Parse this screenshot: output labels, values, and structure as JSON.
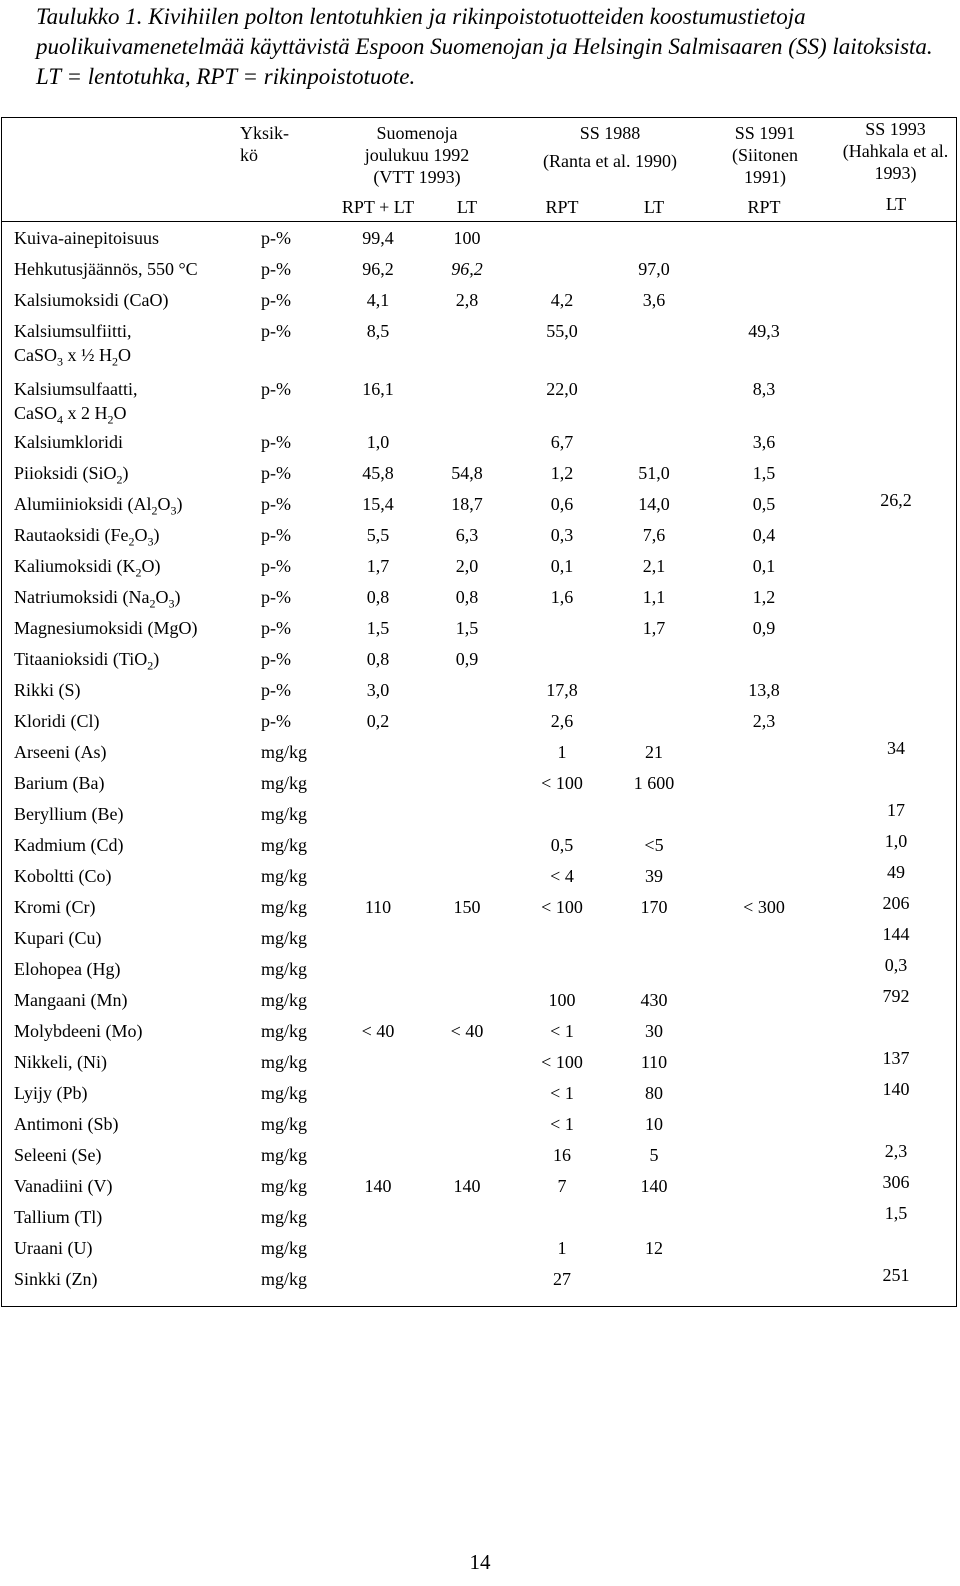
{
  "caption": "Taulukko 1. Kivihiilen polton lentotuhkien ja rikinpoistotuotteiden koostumustietoja puolikuivamenetelmää käyttävistä Espoon Suomenojan ja Helsingin Salmisaaren (SS) laitoksista. LT = lentotuhka, RPT = rikinpoistotuote.",
  "header": {
    "unit": "Yksik-kö",
    "suomenoja": "Suomenoja joulukuu 1992 (VTT 1993)",
    "ss1988_title": "SS 1988",
    "ss1988_ref": "(Ranta et al. 1990)",
    "ss1991": "SS 1991 (Siitonen 1991)",
    "ss1993": "SS 1993 (Hahkala et al. 1993)",
    "sub": [
      "RPT + LT",
      "LT",
      "RPT",
      "LT",
      "RPT",
      "LT"
    ]
  },
  "rows": [
    {
      "label": "Kuiva-ainepitoisuus",
      "unit": "p-%",
      "v": [
        "99,4",
        "100",
        "",
        "",
        "",
        ""
      ]
    },
    {
      "label": "Hehkutusjäännös, 550 °C",
      "unit": "p-%",
      "v": [
        "96,2",
        "96,2",
        "",
        "97,0",
        "",
        ""
      ]
    },
    {
      "label": "Kalsiumoksidi (CaO)",
      "unit": "p-%",
      "v": [
        "4,1",
        "2,8",
        "4,2",
        "3,6",
        "",
        ""
      ]
    },
    {
      "label": "Kalsiumsulfiitti,",
      "label2": "CaSO3 x ½ H2O",
      "unit": "p-%",
      "v": [
        "8,5",
        "",
        "55,0",
        "",
        "49,3",
        ""
      ]
    },
    {
      "label": "Kalsiumsulfaatti,",
      "label2": "CaSO4 x 2 H2O",
      "unit": "p-%",
      "v": [
        "16,1",
        "",
        "22,0",
        "",
        "8,3",
        ""
      ]
    },
    {
      "label": "Kalsiumkloridi",
      "unit": "p-%",
      "v": [
        "1,0",
        "",
        "6,7",
        "",
        "3,6",
        ""
      ]
    },
    {
      "label": "Piioksidi (SiO2)",
      "unit": "p-%",
      "v": [
        "45,8",
        "54,8",
        "1,2",
        "51,0",
        "1,5",
        ""
      ]
    },
    {
      "label": "Alumiinioksidi (Al2O3)",
      "unit": "p-%",
      "v": [
        "15,4",
        "18,7",
        "0,6",
        "14,0",
        "0,5",
        "26,2"
      ]
    },
    {
      "label": "Rautaoksidi (Fe2O3)",
      "unit": "p-%",
      "v": [
        "5,5",
        "6,3",
        "0,3",
        "7,6",
        "0,4",
        ""
      ]
    },
    {
      "label": "Kaliumoksidi (K2O)",
      "unit": "p-%",
      "v": [
        "1,7",
        "2,0",
        "0,1",
        "2,1",
        "0,1",
        ""
      ]
    },
    {
      "label": "Natriumoksidi (Na2O3)",
      "unit": "p-%",
      "v": [
        "0,8",
        "0,8",
        "1,6",
        "1,1",
        "1,2",
        ""
      ]
    },
    {
      "label": "Magnesiumoksidi (MgO)",
      "unit": "p-%",
      "v": [
        "1,5",
        "1,5",
        "",
        "1,7",
        "0,9",
        ""
      ]
    },
    {
      "label": "Titaanioksidi (TiO2)",
      "unit": "p-%",
      "v": [
        "0,8",
        "0,9",
        "",
        "",
        "",
        ""
      ]
    },
    {
      "label": "Rikki (S)",
      "unit": "p-%",
      "v": [
        "3,0",
        "",
        "17,8",
        "",
        "13,8",
        ""
      ]
    },
    {
      "label": "Kloridi (Cl)",
      "unit": "p-%",
      "v": [
        "0,2",
        "",
        "2,6",
        "",
        "2,3",
        ""
      ]
    },
    {
      "label": "Arseeni (As)",
      "unit": "mg/kg",
      "v": [
        "",
        "",
        "1",
        "21",
        "",
        "34"
      ]
    },
    {
      "label": "Barium (Ba)",
      "unit": "mg/kg",
      "v": [
        "",
        "",
        "< 100",
        "1 600",
        "",
        ""
      ]
    },
    {
      "label": "Beryllium (Be)",
      "unit": "mg/kg",
      "v": [
        "",
        "",
        "",
        "",
        "",
        "17"
      ]
    },
    {
      "label": "Kadmium (Cd)",
      "unit": "mg/kg",
      "v": [
        "",
        "",
        "0,5",
        "<5",
        "",
        "1,0"
      ]
    },
    {
      "label": "Koboltti (Co)",
      "unit": "mg/kg",
      "v": [
        "",
        "",
        "< 4",
        "39",
        "",
        "49"
      ]
    },
    {
      "label": "Kromi (Cr)",
      "unit": "mg/kg",
      "v": [
        "110",
        "150",
        "< 100",
        "170",
        "< 300",
        "206"
      ]
    },
    {
      "label": "Kupari (Cu)",
      "unit": "mg/kg",
      "v": [
        "",
        "",
        "",
        "",
        "",
        "144"
      ]
    },
    {
      "label": "Elohopea (Hg)",
      "unit": "mg/kg",
      "v": [
        "",
        "",
        "",
        "",
        "",
        "0,3"
      ]
    },
    {
      "label": "Mangaani (Mn)",
      "unit": "mg/kg",
      "v": [
        "",
        "",
        "100",
        "430",
        "",
        "792"
      ]
    },
    {
      "label": "Molybdeeni (Mo)",
      "unit": "mg/kg",
      "v": [
        "< 40",
        "< 40",
        "< 1",
        "30",
        "",
        ""
      ]
    },
    {
      "label": "Nikkeli, (Ni)",
      "unit": "mg/kg",
      "v": [
        "",
        "",
        "< 100",
        "110",
        "",
        "137"
      ]
    },
    {
      "label": "Lyijy (Pb)",
      "unit": "mg/kg",
      "v": [
        "",
        "",
        "< 1",
        "80",
        "",
        "140"
      ]
    },
    {
      "label": "Antimoni (Sb)",
      "unit": "mg/kg",
      "v": [
        "",
        "",
        "< 1",
        "10",
        "",
        ""
      ]
    },
    {
      "label": "Seleeni (Se)",
      "unit": "mg/kg",
      "v": [
        "",
        "",
        "16",
        "5",
        "",
        "2,3"
      ]
    },
    {
      "label": "Vanadiini (V)",
      "unit": "mg/kg",
      "v": [
        "140",
        "140",
        "7",
        "140",
        "",
        "306"
      ]
    },
    {
      "label": "Tallium (Tl)",
      "unit": "mg/kg",
      "v": [
        "",
        "",
        "",
        "",
        "",
        "1,5"
      ]
    },
    {
      "label": "Uraani (U)",
      "unit": "mg/kg",
      "v": [
        "",
        "",
        "1",
        "12",
        "",
        ""
      ]
    },
    {
      "label": "Sinkki (Zn)",
      "unit": "mg/kg",
      "v": [
        "",
        "",
        "27",
        "",
        "",
        "251"
      ]
    }
  ],
  "page_number": "14"
}
